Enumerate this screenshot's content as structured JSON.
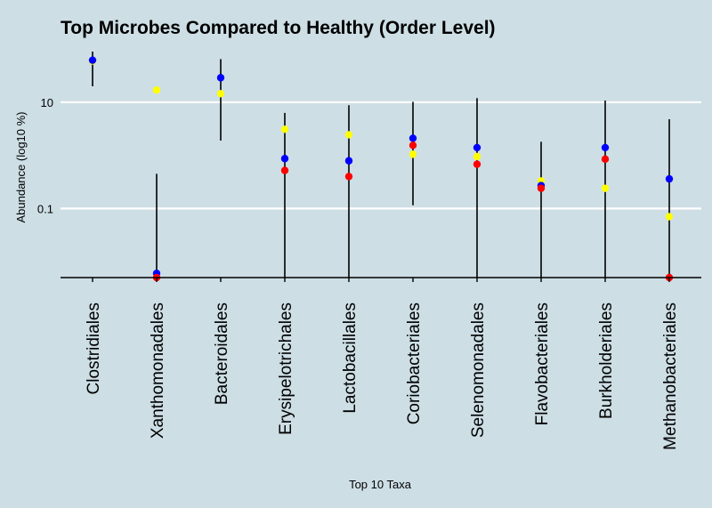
{
  "chart_data": {
    "type": "scatter",
    "title": "Top Microbes Compared to Healthy (Order Level)",
    "xlabel": "Top 10 Taxa",
    "ylabel": "Abundance (log10 %)",
    "y_scale": "log10",
    "yticks": [
      {
        "value": 0.1,
        "label": "0.1"
      },
      {
        "value": 10,
        "label": "10"
      }
    ],
    "ylim": [
      0.005,
      90
    ],
    "grid": true,
    "legend": "none",
    "categories": [
      "Clostridiales",
      "Xanthomonadales",
      "Bacteroidales",
      "Erysipelotrichales",
      "Lactobacillales",
      "Coriobacteriales",
      "Selenomonadales",
      "Flavobacteriales",
      "Burkholderiales",
      "Methanobacteriales"
    ],
    "ranges": [
      {
        "low": 20,
        "high": 90
      },
      {
        "low": 0.005,
        "high": 0.45
      },
      {
        "low": 1.9,
        "high": 65
      },
      {
        "low": 0.005,
        "high": 6.3
      },
      {
        "low": 0.005,
        "high": 8.8
      },
      {
        "low": 0.115,
        "high": 10.2
      },
      {
        "low": 0.005,
        "high": 12
      },
      {
        "low": 0.005,
        "high": 1.8
      },
      {
        "low": 0.005,
        "high": 10.8
      },
      {
        "low": 0.005,
        "high": 4.8
      }
    ],
    "series": [
      {
        "color": "#ffff00",
        "values": [
          60,
          17,
          14.5,
          3.1,
          2.45,
          1.05,
          0.95,
          0.33,
          0.24,
          0.07
        ]
      },
      {
        "color": "#0000ff",
        "values": [
          62,
          0.006,
          29,
          0.87,
          0.79,
          2.1,
          1.4,
          0.27,
          1.4,
          0.36
        ]
      },
      {
        "color": "#ff0000",
        "values": [
          null,
          0.005,
          null,
          0.52,
          0.4,
          1.55,
          0.68,
          0.24,
          0.85,
          0.005
        ]
      }
    ]
  }
}
